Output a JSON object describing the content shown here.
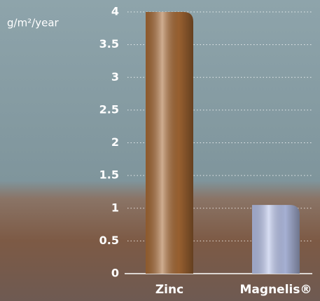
{
  "chart_data": {
    "type": "bar",
    "y_axis_label": "g/m²/year",
    "categories": [
      "Zinc",
      "Magnelis®"
    ],
    "values": [
      4,
      1.05
    ],
    "colors": [
      "#a86a35",
      "#b8c3ea"
    ],
    "ylim": [
      0,
      4
    ],
    "yticks": [
      0,
      0.5,
      1,
      1.5,
      2,
      2.5,
      3,
      3.5,
      4
    ],
    "grid": true
  }
}
